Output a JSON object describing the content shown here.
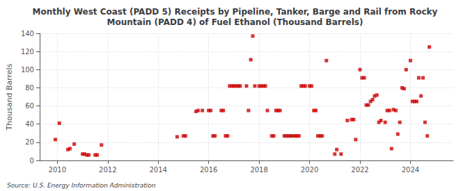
{
  "chart_data": {
    "type": "scatter",
    "title": "Monthly West Coast (PADD 5) Receipts by Pipeline, Tanker, Barge and Rail from Rocky\nMountain (PADD 4) of Fuel Ethanol (Thousand Barrels)",
    "ylabel": "Thousand Barrels",
    "annotations": [
      "Source: U.S. Energy Information Administration"
    ],
    "color": "#cc0000",
    "marker": "square",
    "grid": true,
    "xlim": [
      2009.3,
      2025.7
    ],
    "xticks": [
      2010,
      2012,
      2014,
      2016,
      2018,
      2020,
      2022,
      2024
    ],
    "ylim": [
      0,
      140
    ],
    "yticks": [
      0,
      20,
      40,
      60,
      80,
      100,
      120,
      140
    ],
    "x": [
      2009.92,
      2010.08,
      2010.42,
      2010.5,
      2010.67,
      2011.0,
      2011.08,
      2011.17,
      2011.25,
      2011.5,
      2011.58,
      2011.75,
      2014.75,
      2015.0,
      2015.08,
      2015.5,
      2015.58,
      2015.75,
      2016.0,
      2016.08,
      2016.17,
      2016.25,
      2016.5,
      2016.58,
      2016.67,
      2016.75,
      2016.83,
      2016.92,
      2017.0,
      2017.08,
      2017.17,
      2017.25,
      2017.5,
      2017.58,
      2017.67,
      2017.75,
      2017.83,
      2018.0,
      2018.08,
      2018.17,
      2018.25,
      2018.33,
      2018.5,
      2018.58,
      2018.67,
      2018.75,
      2018.83,
      2019.0,
      2019.08,
      2019.17,
      2019.25,
      2019.33,
      2019.42,
      2019.5,
      2019.58,
      2019.67,
      2019.75,
      2019.83,
      2020.0,
      2020.08,
      2020.17,
      2020.25,
      2020.33,
      2020.42,
      2020.5,
      2020.67,
      2021.0,
      2021.08,
      2021.25,
      2021.5,
      2021.67,
      2021.75,
      2021.83,
      2022.0,
      2022.08,
      2022.17,
      2022.25,
      2022.33,
      2022.42,
      2022.5,
      2022.58,
      2022.67,
      2022.75,
      2022.83,
      2023.0,
      2023.08,
      2023.17,
      2023.25,
      2023.33,
      2023.42,
      2023.5,
      2023.58,
      2023.67,
      2023.75,
      2023.83,
      2024.0,
      2024.08,
      2024.17,
      2024.25,
      2024.33,
      2024.42,
      2024.5,
      2024.58,
      2024.67,
      2024.75
    ],
    "values": [
      23,
      41,
      12,
      13,
      18,
      7,
      7,
      6,
      6,
      6,
      6,
      17,
      26,
      27,
      27,
      54,
      55,
      55,
      55,
      55,
      27,
      27,
      55,
      55,
      27,
      27,
      82,
      82,
      82,
      82,
      82,
      82,
      82,
      55,
      111,
      137,
      82,
      82,
      82,
      82,
      82,
      55,
      27,
      27,
      55,
      55,
      55,
      27,
      27,
      27,
      27,
      27,
      27,
      27,
      27,
      82,
      82,
      82,
      82,
      82,
      55,
      55,
      27,
      27,
      27,
      110,
      7,
      12,
      7,
      44,
      45,
      45,
      23,
      100,
      91,
      91,
      61,
      61,
      65,
      67,
      71,
      72,
      42,
      44,
      42,
      55,
      55,
      13,
      56,
      55,
      29,
      42,
      80,
      79,
      100,
      110,
      65,
      65,
      65,
      91,
      71,
      91,
      42,
      27,
      125
    ]
  }
}
